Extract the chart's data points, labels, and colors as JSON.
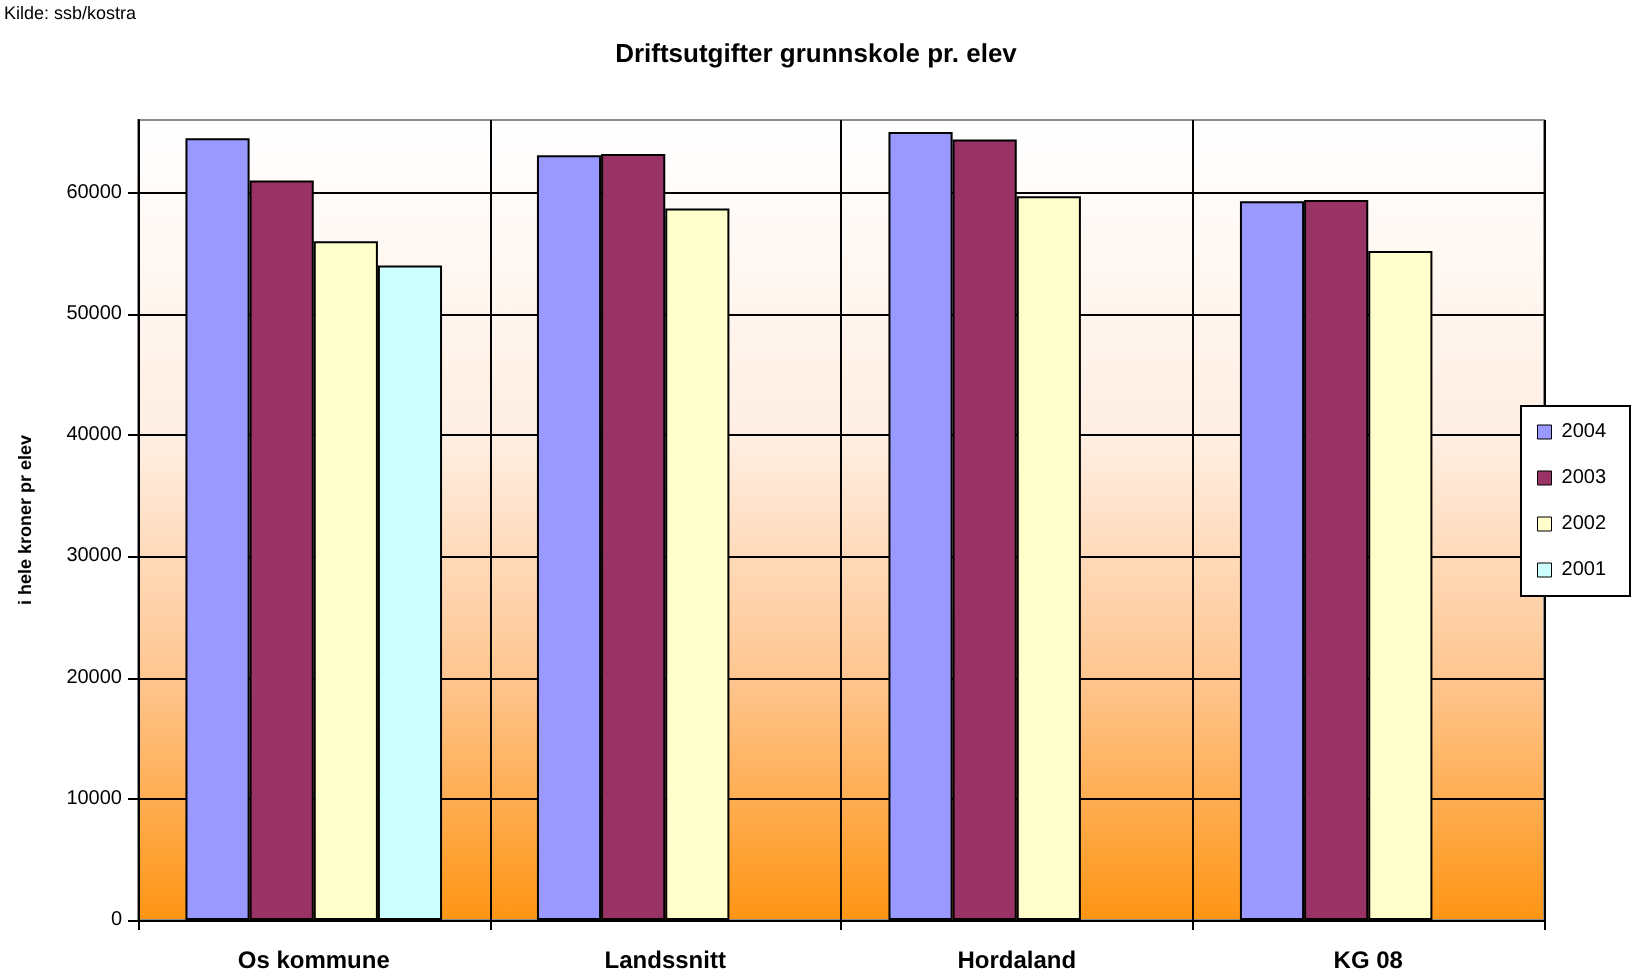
{
  "chart_data": {
    "type": "bar",
    "title": "Driftsutgifter grunnskole pr. elev",
    "ylabel": "i hele kroner pr elev",
    "annotations": [
      "Kilde: ssb/kostra"
    ],
    "categories": [
      "Os kommune",
      "Landssnitt",
      "Hordaland",
      "KG 08"
    ],
    "series": [
      {
        "name": "2004",
        "color": "#9999ff",
        "values": [
          64500,
          63100,
          65000,
          59300
        ]
      },
      {
        "name": "2003",
        "color": "#993366",
        "values": [
          61000,
          63200,
          64400,
          59400
        ]
      },
      {
        "name": "2002",
        "color": "#ffffcc",
        "values": [
          56000,
          58700,
          59700,
          55200
        ]
      },
      {
        "name": "2001",
        "color": "#ccffff",
        "values": [
          54000,
          null,
          null,
          null
        ]
      }
    ],
    "ylim": [
      0,
      66000
    ],
    "yticks": [
      0,
      10000,
      20000,
      30000,
      40000,
      50000,
      60000
    ],
    "grid": true,
    "legend": "right"
  }
}
